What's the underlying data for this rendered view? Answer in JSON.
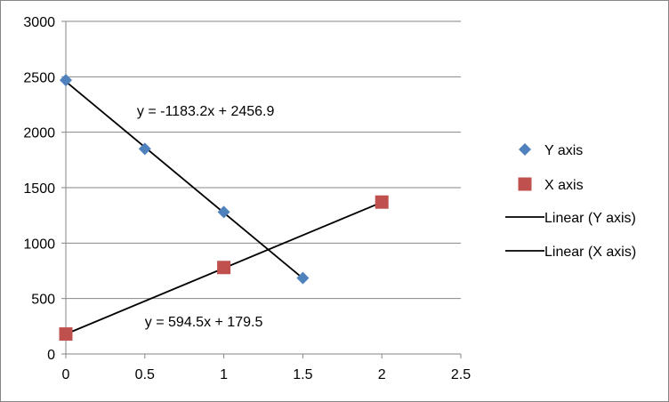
{
  "chart_data": {
    "type": "scatter",
    "title": "",
    "xlabel": "",
    "ylabel": "",
    "xlim": [
      0,
      2.5
    ],
    "ylim": [
      0,
      3000
    ],
    "x_ticks": [
      "0",
      "0.5",
      "1",
      "1.5",
      "2",
      "2.5"
    ],
    "y_ticks": [
      "0",
      "500",
      "1000",
      "1500",
      "2000",
      "2500",
      "3000"
    ],
    "grid": "horizontal",
    "legend_position": "right",
    "series": [
      {
        "name": "Y axis",
        "marker": "diamond",
        "color": "#4F81BD",
        "x": [
          0,
          0.5,
          1,
          1.5
        ],
        "y": [
          2470,
          1850,
          1280,
          685
        ]
      },
      {
        "name": "X axis",
        "marker": "square",
        "color": "#C0504D",
        "x": [
          0,
          1,
          2
        ],
        "y": [
          180,
          780,
          1370
        ]
      }
    ],
    "trendlines": [
      {
        "name": "Linear (Y axis)",
        "series": "Y axis",
        "slope": -1183.2,
        "intercept": 2456.9,
        "x_range": [
          0,
          1.5
        ],
        "equation": "y = -1183.2x + 2456.9",
        "color": "#000000"
      },
      {
        "name": "Linear (X axis)",
        "series": "X axis",
        "slope": 594.5,
        "intercept": 179.5,
        "x_range": [
          0,
          2
        ],
        "equation": "y = 594.5x + 179.5",
        "color": "#000000"
      }
    ],
    "annotations": [
      {
        "text": "y = -1183.2x + 2456.9",
        "x": 0.45,
        "y": 2150
      },
      {
        "text": "y = 594.5x + 179.5",
        "x": 0.5,
        "y": 250
      }
    ],
    "legend": [
      "Y axis",
      "X axis",
      "Linear (Y axis)",
      "Linear (X axis)"
    ]
  }
}
